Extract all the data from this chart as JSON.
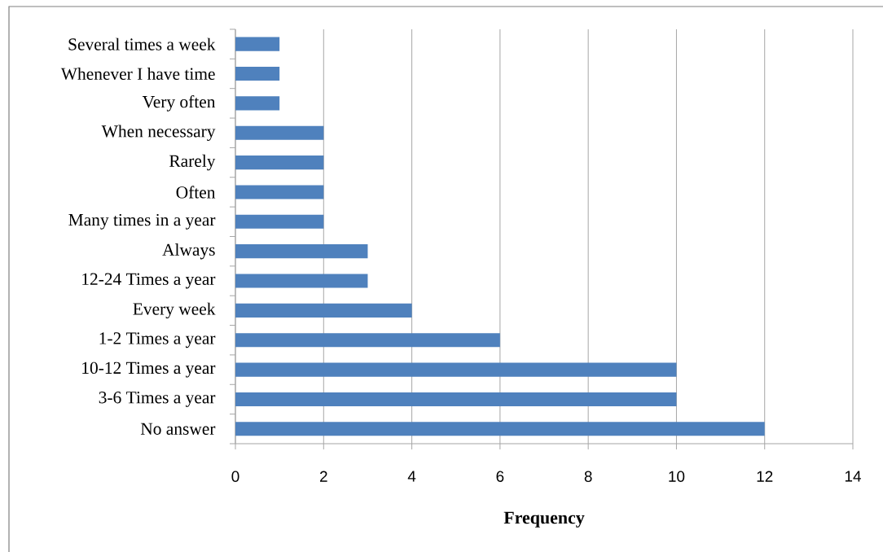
{
  "chart_data": {
    "type": "bar",
    "orientation": "horizontal",
    "xlabel": "Frequency",
    "categories": [
      "Several times a week",
      "Whenever I have time",
      "Very often",
      "When necessary",
      "Rarely",
      "Often",
      "Many times in a year",
      "Always",
      "12-24 Times a year",
      "Every week",
      "1-2 Times a year",
      "10-12 Times a year",
      "3-6 Times a year",
      "No answer"
    ],
    "values": [
      1,
      1,
      1,
      2,
      2,
      2,
      2,
      3,
      3,
      4,
      6,
      10,
      10,
      12
    ],
    "color": "#4f81bd",
    "xlim": [
      0,
      14
    ],
    "xticks": [
      0,
      2,
      4,
      6,
      8,
      10,
      12,
      14
    ],
    "grid": "x"
  }
}
